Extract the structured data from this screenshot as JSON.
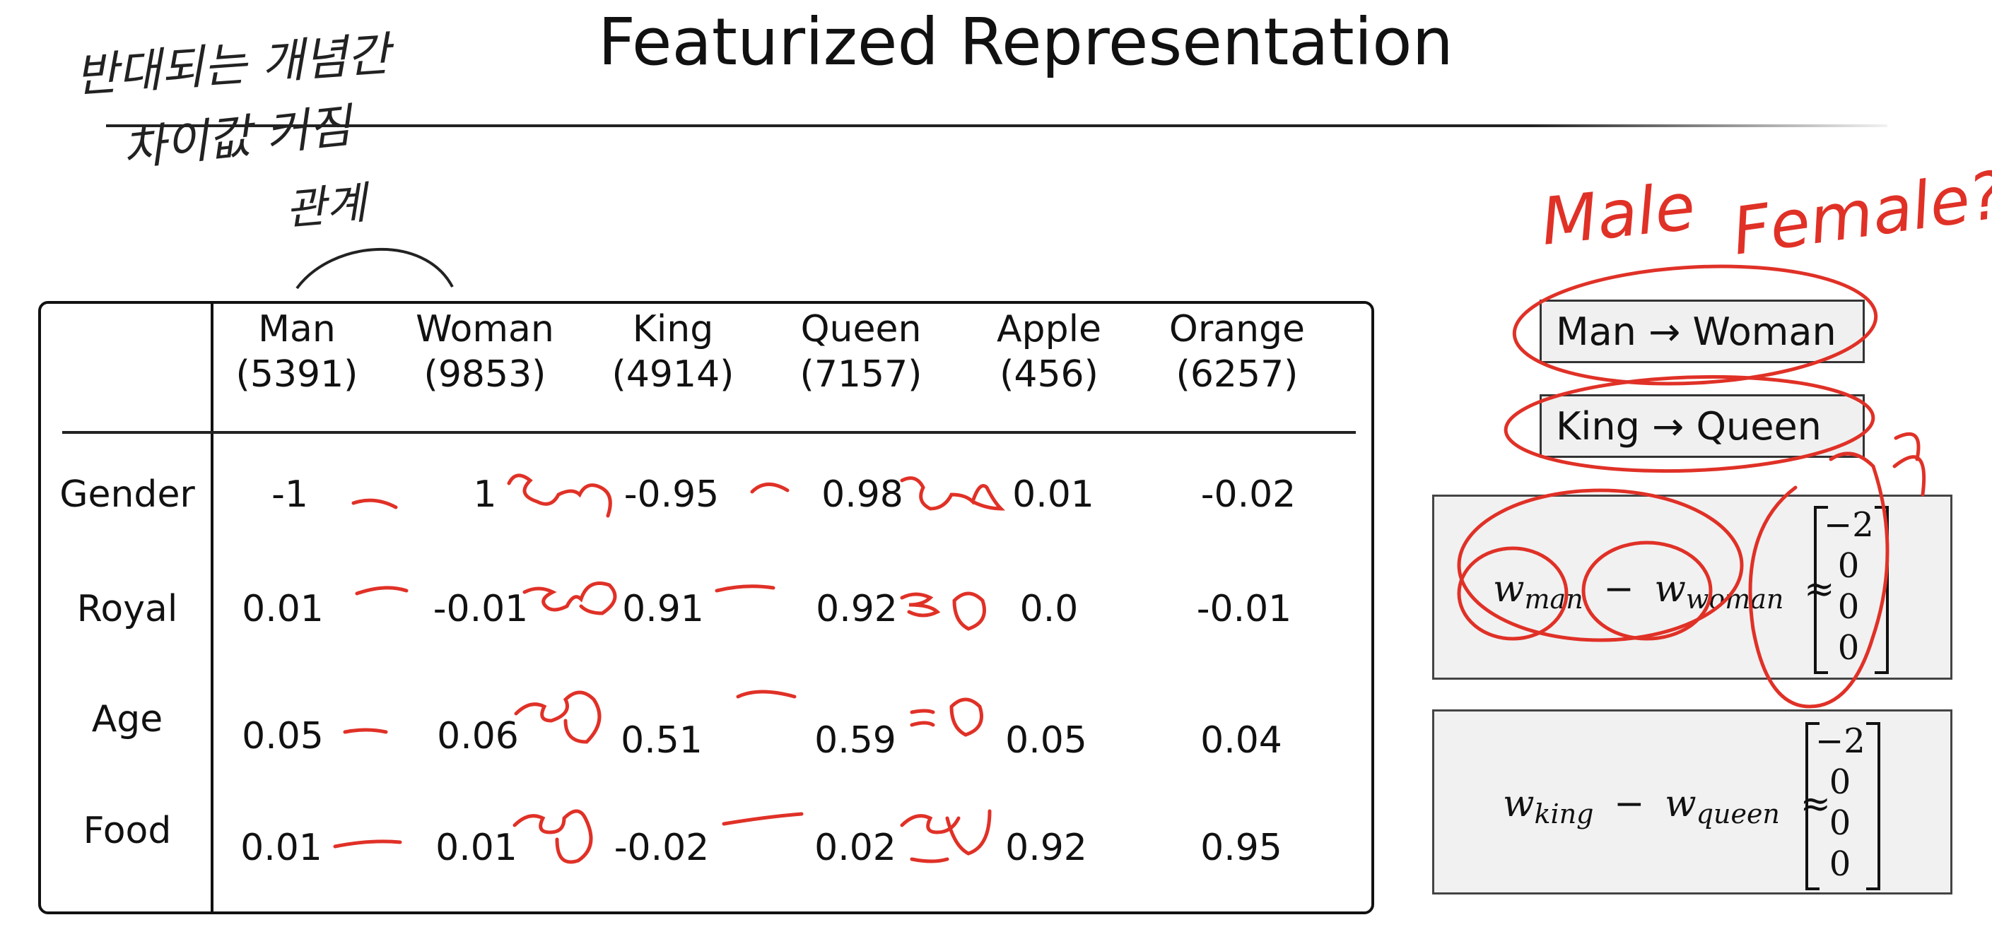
{
  "slide": {
    "title": "Featurized Representation"
  },
  "table": {
    "columns": [
      {
        "word": "Man",
        "index": "(5391)"
      },
      {
        "word": "Woman",
        "index": "(9853)"
      },
      {
        "word": "King",
        "index": "(4914)"
      },
      {
        "word": "Queen",
        "index": "(7157)"
      },
      {
        "word": "Apple",
        "index": "(456)"
      },
      {
        "word": "Orange",
        "index": "(6257)"
      }
    ],
    "rows": [
      {
        "label": "Gender",
        "values": [
          "-1",
          "1",
          "-0.95",
          "0.98",
          "0.01",
          "-0.02"
        ]
      },
      {
        "label": "Royal",
        "values": [
          "0.01",
          "-0.01",
          "0.91",
          "0.92",
          "0.0",
          "-0.01"
        ]
      },
      {
        "label": "Age",
        "values": [
          "0.05",
          "0.06",
          "0.51",
          "0.59",
          "0.05",
          "0.04"
        ]
      },
      {
        "label": "Food",
        "values": [
          "0.01",
          "0.01",
          "-0.02",
          "0.02",
          "0.92",
          "0.95"
        ]
      }
    ]
  },
  "analogies": {
    "first": "Man → Woman",
    "second": "King → Queen"
  },
  "equations": {
    "eq1": {
      "w1": "w",
      "w1_sub": "man",
      "minus": "−",
      "w2": "w",
      "w2_sub": "woman",
      "approx": "≈",
      "vector": [
        "−2",
        "0",
        "0",
        "0"
      ]
    },
    "eq2": {
      "w1": "w",
      "w1_sub": "king",
      "minus": "−",
      "w2": "w",
      "w2_sub": "queen",
      "approx": "≈",
      "vector": [
        "−2",
        "0",
        "0",
        "0"
      ]
    }
  },
  "annotations": {
    "ink_color": "#e03127",
    "handwritten_korean_1": "반대되는 개념간",
    "handwritten_korean_2": "차이값 커짐",
    "handwritten_korean_3": "관계",
    "handwritten_male": "Male",
    "handwritten_female": "Female?"
  }
}
